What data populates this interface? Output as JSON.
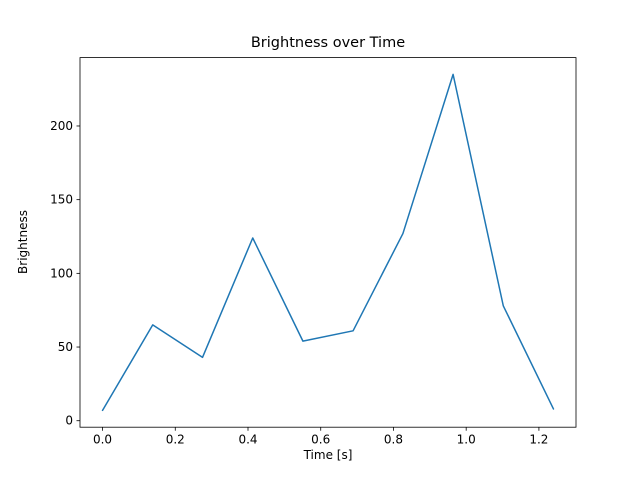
{
  "chart_data": {
    "type": "line",
    "title": "Brightness over Time",
    "xlabel": "Time [s]",
    "ylabel": "Brightness",
    "x": [
      0.0,
      0.138,
      0.275,
      0.413,
      0.551,
      0.689,
      0.826,
      0.964,
      1.102,
      1.24
    ],
    "y": [
      7,
      65,
      43,
      124,
      54,
      61,
      127,
      235,
      78,
      8
    ],
    "xlim": [
      -0.062,
      1.302
    ],
    "ylim": [
      -4.4,
      246.4
    ],
    "xticks": [
      0.0,
      0.2,
      0.4,
      0.6,
      0.8,
      1.0,
      1.2
    ],
    "yticks": [
      0,
      50,
      100,
      150,
      200
    ],
    "x_tick_decimals": 1,
    "line_color": "#1f77b4",
    "axis_color": "#000000",
    "grid": false,
    "legend": null
  }
}
